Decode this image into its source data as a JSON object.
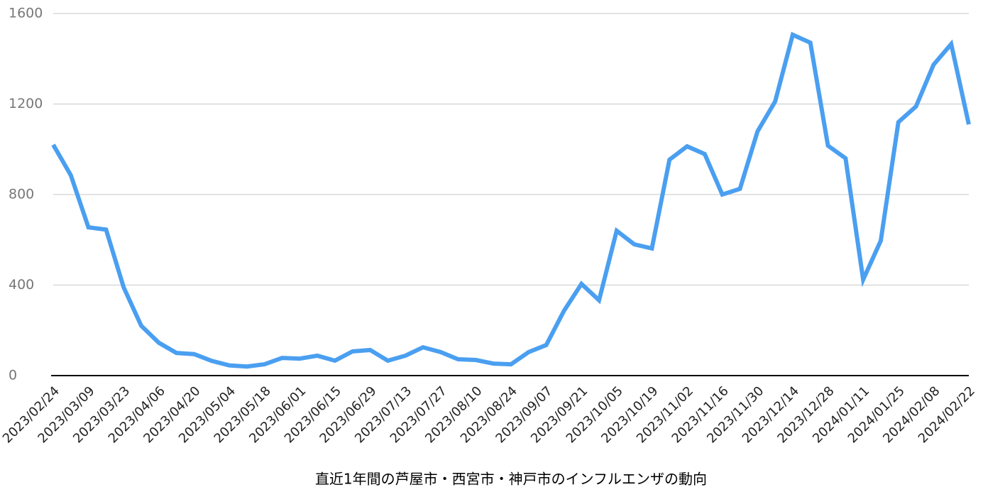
{
  "chart_data": {
    "type": "line",
    "title": "直近1年間の芦屋市・西宮市・神戸市のインフルエンザの動向",
    "categories": [
      "2023/02/24",
      null,
      "2023/03/09",
      null,
      "2023/03/23",
      null,
      "2023/04/06",
      null,
      "2023/04/20",
      null,
      "2023/05/04",
      null,
      "2023/05/18",
      null,
      "2023/06/01",
      null,
      "2023/06/15",
      null,
      "2023/06/29",
      null,
      "2023/07/13",
      null,
      "2023/07/27",
      null,
      "2023/08/10",
      null,
      "2023/08/24",
      null,
      "2023/09/07",
      null,
      "2023/09/21",
      null,
      "2023/10/05",
      null,
      "2023/10/19",
      null,
      "2023/11/02",
      null,
      "2023/11/16",
      null,
      "2023/11/30",
      null,
      "2023/12/14",
      null,
      "2023/12/28",
      null,
      "2024/01/11",
      null,
      "2024/01/25",
      null,
      "2024/02/08",
      null,
      "2024/02/22"
    ],
    "values": [
      1020,
      885,
      655,
      645,
      390,
      220,
      145,
      100,
      95,
      65,
      45,
      40,
      50,
      78,
      75,
      88,
      66,
      107,
      113,
      66,
      88,
      125,
      104,
      72,
      69,
      53,
      50,
      104,
      135,
      285,
      405,
      333,
      640,
      580,
      562,
      954,
      1013,
      979,
      800,
      825,
      1079,
      1211,
      1506,
      1471,
      1016,
      960,
      424,
      596,
      1120,
      1189,
      1374,
      1465,
      1110
    ],
    "color": "#4a9ff0",
    "ylim": [
      0,
      1600
    ],
    "yticks": [
      0,
      400,
      800,
      1200,
      1600
    ],
    "grid": true
  }
}
